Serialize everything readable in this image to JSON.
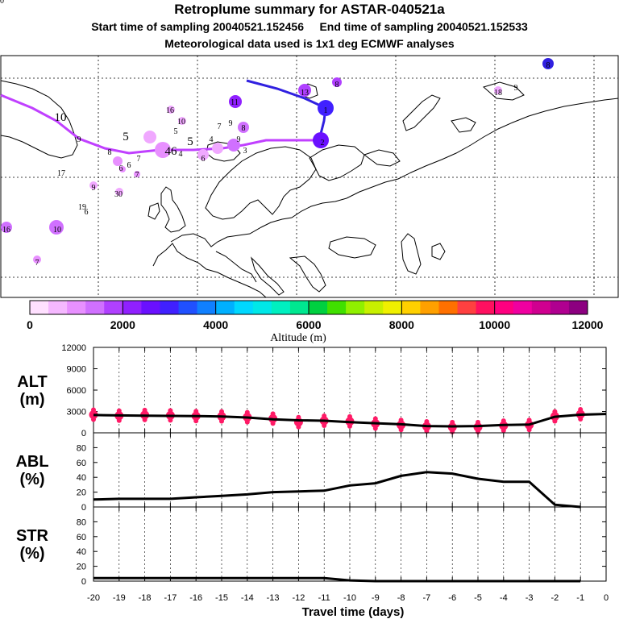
{
  "header": {
    "title": "Retroplume summary for ASTAR-040521a",
    "sampling": "Start time of sampling 20040521.152456     End time of sampling 20040521.152533",
    "met": "Meteorological data used is 1x1 deg ECMWF analyses"
  },
  "colors": {
    "trajectory_low": "#c040ff",
    "trajectory_high": "#3020e0",
    "marker": "#ff1a66",
    "line": "#000000"
  },
  "colorbar": {
    "label": "Altitude (m)",
    "tick_labels": [
      "0",
      "2000",
      "4000",
      "6000",
      "8000",
      "10000",
      "12000"
    ],
    "colors": [
      "#ffe0ff",
      "#f5b8ff",
      "#e890ff",
      "#d070ff",
      "#b040ff",
      "#9020ff",
      "#6a10ff",
      "#4020ff",
      "#2050ff",
      "#1080ff",
      "#00b0ff",
      "#00d8ff",
      "#00e8e8",
      "#00f0c0",
      "#00e890",
      "#00d040",
      "#40e000",
      "#90f000",
      "#c8f000",
      "#f0f000",
      "#ffd000",
      "#ffa000",
      "#ff7000",
      "#ff4040",
      "#ff1060",
      "#ff0080",
      "#f000a0",
      "#d00090",
      "#b00090",
      "#8c0080"
    ]
  },
  "map": {
    "day_labels": [
      {
        "t": "10",
        "c": "#000000"
      },
      {
        "t": "9",
        "c": "#000000"
      },
      {
        "t": "8",
        "c": "#000000"
      },
      {
        "t": "7",
        "c": "#000000"
      },
      {
        "t": "6",
        "c": "#000000"
      },
      {
        "t": "46",
        "c": "#000000"
      },
      {
        "t": "4",
        "c": "#000000"
      },
      {
        "t": "5",
        "c": "#000000"
      },
      {
        "t": "5",
        "c": "#000000"
      },
      {
        "t": "4",
        "c": "#000000"
      },
      {
        "t": "3",
        "c": "#000000"
      },
      {
        "t": "2",
        "c": "#000000"
      },
      {
        "t": "1",
        "c": "#000000"
      },
      {
        "t": "16",
        "c": "#000000"
      },
      {
        "t": "10",
        "c": "#000000"
      },
      {
        "t": "5",
        "c": "#000000"
      },
      {
        "t": "11",
        "c": "#000000"
      },
      {
        "t": "7",
        "c": "#000000"
      },
      {
        "t": "9",
        "c": "#000000"
      },
      {
        "t": "8",
        "c": "#000000"
      },
      {
        "t": "6",
        "c": "#000000"
      },
      {
        "t": "9",
        "c": "#000000"
      },
      {
        "t": "6",
        "c": "#000000"
      },
      {
        "t": "7",
        "c": "#000000"
      },
      {
        "t": "17",
        "c": "#000000"
      },
      {
        "t": "9",
        "c": "#000000"
      },
      {
        "t": "30",
        "c": "#000000"
      },
      {
        "t": "19",
        "c": "#000000"
      },
      {
        "t": "6",
        "c": "#000000"
      },
      {
        "t": "16",
        "c": "#000000"
      },
      {
        "t": "10",
        "c": "#000000"
      },
      {
        "t": "7",
        "c": "#000000"
      },
      {
        "t": "8",
        "c": "#000000"
      },
      {
        "t": "13",
        "c": "#000000"
      },
      {
        "t": "8",
        "c": "#000000"
      },
      {
        "t": "18",
        "c": "#000000"
      },
      {
        "t": "9",
        "c": "#000000"
      },
      {
        "t": "10",
        "c": "#000000"
      }
    ]
  },
  "chart_data": [
    {
      "type": "line",
      "panel": "ALT",
      "ylabel": "ALT\n(m)",
      "ylabel_lines": [
        "ALT",
        "(m)"
      ],
      "x": [
        -20,
        -19,
        -18,
        -17,
        -16,
        -15,
        -14,
        -13,
        -12,
        -11,
        -10,
        -9,
        -8,
        -7,
        -6,
        -5,
        -4,
        -3,
        -2,
        -1,
        0
      ],
      "values": [
        2500,
        2450,
        2400,
        2380,
        2350,
        2300,
        2150,
        1900,
        1750,
        1700,
        1500,
        1350,
        1200,
        950,
        900,
        950,
        1100,
        1150,
        2250,
        2550,
        2650
      ],
      "markers": [
        {
          "x": -20,
          "y": 2550
        },
        {
          "x": -19,
          "y": 2400
        },
        {
          "x": -18,
          "y": 2500
        },
        {
          "x": -17,
          "y": 2450
        },
        {
          "x": -16,
          "y": 2350
        },
        {
          "x": -15,
          "y": 2300
        },
        {
          "x": -14,
          "y": 2200
        },
        {
          "x": -13,
          "y": 2000
        },
        {
          "x": -12,
          "y": 1500
        },
        {
          "x": -11,
          "y": 1700
        },
        {
          "x": -10,
          "y": 1600
        },
        {
          "x": -9,
          "y": 1300
        },
        {
          "x": -8,
          "y": 1100
        },
        {
          "x": -7,
          "y": 900
        },
        {
          "x": -6,
          "y": 800
        },
        {
          "x": -5,
          "y": 800
        },
        {
          "x": -4,
          "y": 1000
        },
        {
          "x": -3,
          "y": 1100
        },
        {
          "x": -2,
          "y": 2300
        },
        {
          "x": -1,
          "y": 2600
        }
      ],
      "ylim": [
        0,
        12000
      ],
      "yticks": [
        "0",
        "3000",
        "6000",
        "9000",
        "12000"
      ],
      "ytick_values": [
        0,
        3000,
        6000,
        9000,
        12000
      ]
    },
    {
      "type": "line",
      "panel": "ABL",
      "ylabel_lines": [
        "ABL",
        "(%)"
      ],
      "x": [
        -20,
        -19,
        -18,
        -17,
        -16,
        -15,
        -14,
        -13,
        -12,
        -11,
        -10,
        -9,
        -8,
        -7,
        -6,
        -5,
        -4,
        -3,
        -2,
        -1
      ],
      "values": [
        10,
        11,
        11,
        11,
        13,
        15,
        17,
        20,
        21,
        22,
        29,
        32,
        42,
        47,
        45,
        38,
        34,
        34,
        3,
        0
      ],
      "ylim": [
        0,
        100
      ],
      "yticks": [
        "0",
        "20",
        "40",
        "60",
        "80"
      ],
      "ytick_values": [
        0,
        20,
        40,
        60,
        80
      ]
    },
    {
      "type": "line",
      "panel": "STR",
      "ylabel_lines": [
        "STR",
        "(%)"
      ],
      "x": [
        -20,
        -19,
        -18,
        -17,
        -16,
        -15,
        -14,
        -13,
        -12,
        -11,
        -10,
        -9,
        -8,
        -7,
        -6,
        -5,
        -4,
        -3,
        -2,
        -1
      ],
      "values": [
        4,
        4,
        4,
        4,
        4,
        4,
        4,
        4,
        4,
        4,
        1,
        0,
        0,
        0,
        0,
        0,
        0,
        0,
        0,
        0
      ],
      "ylim": [
        0,
        100
      ],
      "yticks": [
        "0",
        "20",
        "40",
        "60",
        "80"
      ],
      "ytick_values": [
        0,
        20,
        40,
        60,
        80
      ]
    }
  ],
  "xaxis": {
    "label": "Travel time (days)",
    "ticks": [
      "-20",
      "-19",
      "-18",
      "-17",
      "-16",
      "-15",
      "-14",
      "-13",
      "-12",
      "-11",
      "-10",
      "-9",
      "-8",
      "-7",
      "-6",
      "-5",
      "-4",
      "-3",
      "-2",
      "-1",
      "0"
    ],
    "tick_values": [
      -20,
      -19,
      -18,
      -17,
      -16,
      -15,
      -14,
      -13,
      -12,
      -11,
      -10,
      -9,
      -8,
      -7,
      -6,
      -5,
      -4,
      -3,
      -2,
      -1,
      0
    ]
  }
}
